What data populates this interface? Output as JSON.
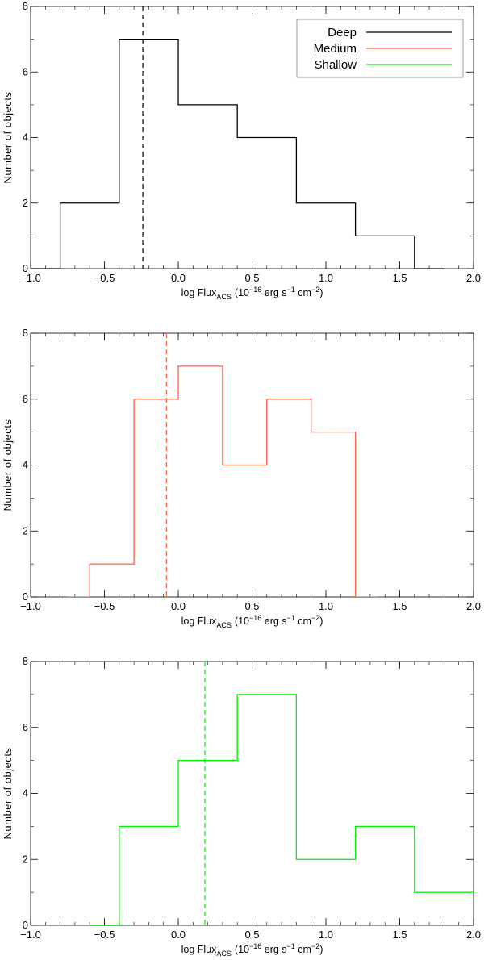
{
  "chart_data": [
    {
      "type": "histogram",
      "xlabel_main": "log Flux",
      "xlabel_sub": "ACS",
      "xlabel_units_pre": "(10",
      "xlabel_exp1": "−16",
      "xlabel_units_mid1": " erg s",
      "xlabel_exp2": "−1",
      "xlabel_units_mid2": " cm",
      "xlabel_exp3": "−2",
      "xlabel_units_post": ")",
      "ylabel": "Number of objects",
      "xlim": [
        -1.0,
        2.0
      ],
      "ylim": [
        0,
        8
      ],
      "xticks": [
        "−1.0",
        "−0.5",
        "0.0",
        "0.5",
        "1.0",
        "1.5",
        "2.0"
      ],
      "yticks": [
        "0",
        "2",
        "4",
        "6",
        "8"
      ],
      "color": "#000000",
      "bin_edges": [
        -1.0,
        -0.8,
        -0.4,
        0.0,
        0.4,
        0.8,
        1.2,
        1.6,
        1.8
      ],
      "counts": [
        0,
        2,
        7,
        5,
        4,
        2,
        1,
        0
      ],
      "median_line": -0.24,
      "legend": {
        "placement": "top-right",
        "entries": [
          {
            "label": "Deep",
            "color": "#000000"
          },
          {
            "label": "Medium",
            "color": "#ff6040"
          },
          {
            "label": "Shallow",
            "color": "#00ee00"
          }
        ]
      }
    },
    {
      "type": "histogram",
      "xlabel_main": "log Flux",
      "xlabel_sub": "ACS",
      "xlabel_units_pre": "(10",
      "xlabel_exp1": "−16",
      "xlabel_units_mid1": " erg s",
      "xlabel_exp2": "−1",
      "xlabel_units_mid2": " cm",
      "xlabel_exp3": "−2",
      "xlabel_units_post": ")",
      "ylabel": "Number of objects",
      "xlim": [
        -1.0,
        2.0
      ],
      "ylim": [
        0,
        8
      ],
      "xticks": [
        "−1.0",
        "−0.5",
        "0.0",
        "0.5",
        "1.0",
        "1.5",
        "2.0"
      ],
      "yticks": [
        "0",
        "2",
        "4",
        "6",
        "8"
      ],
      "color": "#ff6040",
      "bin_edges": [
        -0.75,
        -0.6,
        -0.3,
        0.0,
        0.3,
        0.6,
        0.9,
        1.2,
        1.35
      ],
      "counts": [
        0,
        1,
        6,
        7,
        4,
        6,
        5,
        0
      ],
      "median_line": -0.08
    },
    {
      "type": "histogram",
      "xlabel_main": "log Flux",
      "xlabel_sub": "ACS",
      "xlabel_units_pre": "(10",
      "xlabel_exp1": "−16",
      "xlabel_units_mid1": " erg s",
      "xlabel_exp2": "−1",
      "xlabel_units_mid2": " cm",
      "xlabel_exp3": "−2",
      "xlabel_units_post": ")",
      "ylabel": "Number of objects",
      "xlim": [
        -1.0,
        2.0
      ],
      "ylim": [
        0,
        8
      ],
      "xticks": [
        "−1.0",
        "−0.5",
        "0.0",
        "0.5",
        "1.0",
        "1.5",
        "2.0"
      ],
      "yticks": [
        "0",
        "2",
        "4",
        "6",
        "8"
      ],
      "color": "#00ee00",
      "bin_edges": [
        -0.6,
        -0.4,
        0.0,
        0.4,
        0.8,
        1.2,
        1.6,
        2.0
      ],
      "counts": [
        0,
        3,
        5,
        7,
        2,
        3,
        1
      ],
      "median_line": 0.18
    }
  ]
}
